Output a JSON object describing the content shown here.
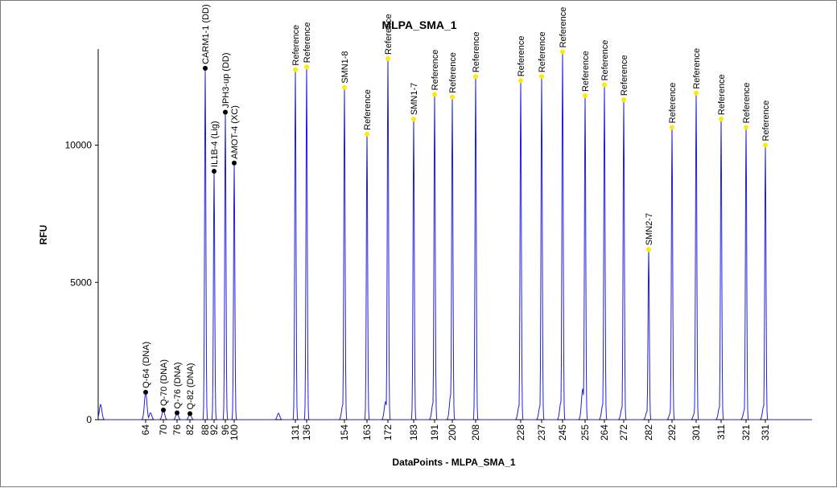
{
  "chart_data": {
    "type": "line",
    "title": "MLPA_SMA_1",
    "xlabel": "DataPoints - MLPA_SMA_1",
    "ylabel": "RFU",
    "yticks": [
      0,
      5000,
      10000
    ],
    "ylim": [
      0,
      13500
    ],
    "grid": false,
    "legend": "none",
    "series_color": "#1f1fd6",
    "peaks": [
      {
        "size": "64",
        "label": "Q-64 (DNA)",
        "height": 1000,
        "marker": "black"
      },
      {
        "size": "70",
        "label": "Q-70 (DNA)",
        "height": 350,
        "marker": "black"
      },
      {
        "size": "76",
        "label": "Q-76 (DNA)",
        "height": 250,
        "marker": "black"
      },
      {
        "size": "82",
        "label": "Q-82 (DNA)",
        "height": 220,
        "marker": "black"
      },
      {
        "size": "88",
        "label": "CARM1-1 (DD)",
        "height": 12800,
        "marker": "black"
      },
      {
        "size": "92",
        "label": "IL1B-4 (Lig)",
        "height": 9050,
        "marker": "black"
      },
      {
        "size": "96",
        "label": "JPH3-up (DD)",
        "height": 11200,
        "marker": "black"
      },
      {
        "size": "100",
        "label": "AMOT-4 (XC)",
        "height": 9350,
        "marker": "black"
      },
      {
        "size": "131",
        "label": "Reference",
        "height": 12750,
        "marker": "yellow"
      },
      {
        "size": "136",
        "label": "Reference",
        "height": 12850,
        "marker": "yellow"
      },
      {
        "size": "154",
        "label": "SMN1-8",
        "height": 12100,
        "marker": "yellow"
      },
      {
        "size": "163",
        "label": "Reference",
        "height": 10400,
        "marker": "yellow"
      },
      {
        "size": "172",
        "label": "Reference",
        "height": 13150,
        "marker": "yellow"
      },
      {
        "size": "183",
        "label": "SMN1-7",
        "height": 10950,
        "marker": "yellow"
      },
      {
        "size": "191",
        "label": "Reference",
        "height": 11850,
        "marker": "yellow"
      },
      {
        "size": "200",
        "label": "Reference",
        "height": 11750,
        "marker": "yellow"
      },
      {
        "size": "208",
        "label": "Reference",
        "height": 12500,
        "marker": "yellow"
      },
      {
        "size": "228",
        "label": "Reference",
        "height": 12350,
        "marker": "yellow"
      },
      {
        "size": "237",
        "label": "Reference",
        "height": 12500,
        "marker": "yellow"
      },
      {
        "size": "245",
        "label": "Reference",
        "height": 13400,
        "marker": "yellow"
      },
      {
        "size": "255",
        "label": "Reference",
        "height": 11800,
        "marker": "yellow"
      },
      {
        "size": "264",
        "label": "Reference",
        "height": 12200,
        "marker": "yellow"
      },
      {
        "size": "272",
        "label": "Reference",
        "height": 11650,
        "marker": "yellow"
      },
      {
        "size": "282",
        "label": "SMN2-7",
        "height": 6200,
        "marker": "yellow"
      },
      {
        "size": "292",
        "label": "Reference",
        "height": 10650,
        "marker": "yellow"
      },
      {
        "size": "301",
        "label": "Reference",
        "height": 11900,
        "marker": "yellow"
      },
      {
        "size": "311",
        "label": "Reference",
        "height": 10950,
        "marker": "yellow"
      },
      {
        "size": "321",
        "label": "Reference",
        "height": 10650,
        "marker": "yellow"
      },
      {
        "size": "331",
        "label": "Reference",
        "height": 10000,
        "marker": "yellow"
      }
    ]
  }
}
